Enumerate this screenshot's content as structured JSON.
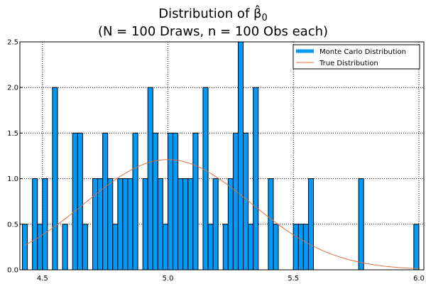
{
  "title": {
    "line1_prefix": "Distribution of ",
    "beta_symbol": "β̂",
    "beta_subscript": "0",
    "line2": "(N = 100 Draws, n = 100 Obs each)"
  },
  "colors": {
    "bar_fill": "#009af9",
    "bar_edge": "#000000",
    "curve": "#e26f46",
    "grid": "#000000",
    "background": "#ffffff"
  },
  "chart_data": {
    "type": "bar",
    "title": "Distribution of β̂0 (N = 100 Draws, n = 100 Obs each)",
    "xlim": [
      4.41,
      6.02
    ],
    "ylim": [
      0,
      2.5
    ],
    "xticks": [
      4.5,
      5.0,
      5.5,
      6.0
    ],
    "xtick_labels": [
      "4.5",
      "5.0",
      "5.5",
      "6.0"
    ],
    "yticks": [
      0.0,
      0.5,
      1.0,
      1.5,
      2.0,
      2.5
    ],
    "ytick_labels": [
      "0.0",
      "0.5",
      "1.0",
      "1.5",
      "2.0",
      "2.5"
    ],
    "grid": true,
    "grid_style": "dotted",
    "legend_position": "top-right",
    "bin_width": 0.02,
    "histogram": {
      "name": "Monte Carlo Distribution",
      "bins_left": [
        4.42,
        4.46,
        4.48,
        4.5,
        4.54,
        4.58,
        4.62,
        4.64,
        4.66,
        4.7,
        4.72,
        4.74,
        4.76,
        4.78,
        4.8,
        4.82,
        4.84,
        4.86,
        4.9,
        4.92,
        4.94,
        4.96,
        4.98,
        5.0,
        5.02,
        5.04,
        5.06,
        5.08,
        5.1,
        5.14,
        5.16,
        5.18,
        5.22,
        5.24,
        5.26,
        5.28,
        5.3,
        5.32,
        5.34,
        5.4,
        5.42,
        5.5,
        5.52,
        5.54,
        5.56,
        5.76,
        5.98
      ],
      "values": [
        0.5,
        1.0,
        0.5,
        1.0,
        2.0,
        0.5,
        1.5,
        1.5,
        0.5,
        1.0,
        1.0,
        1.5,
        1.0,
        0.5,
        1.0,
        1.0,
        1.0,
        1.5,
        1.0,
        2.0,
        1.5,
        1.0,
        0.5,
        1.5,
        1.5,
        1.0,
        1.0,
        1.0,
        1.5,
        2.0,
        0.5,
        1.0,
        0.5,
        1.0,
        1.5,
        2.5,
        1.5,
        0.5,
        2.0,
        1.0,
        0.5,
        0.5,
        0.5,
        0.5,
        1.0,
        1.0,
        0.5
      ]
    },
    "curve": {
      "name": "True Distribution",
      "distribution": "normal",
      "mean": 5.0,
      "sd": 0.33,
      "x_range": [
        4.43,
        6.0
      ]
    }
  }
}
